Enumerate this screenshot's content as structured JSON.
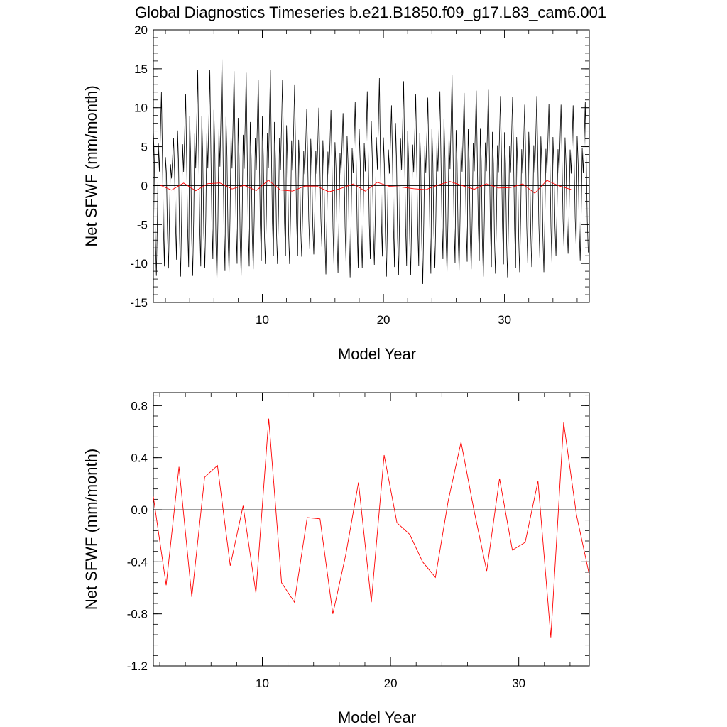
{
  "title": "Global Diagnostics Timeseries b.e21.B1850.f09_g17.L83_cam6.001",
  "colors": {
    "monthly": "#000000",
    "annual": "#ff0000",
    "zero_line": "#000000"
  },
  "chart_data": [
    {
      "type": "line",
      "xlabel": "Model Year",
      "ylabel": "Net SFWF (mm/month)",
      "xlim": [
        1,
        37
      ],
      "ylim": [
        -15,
        20
      ],
      "xticks": [
        10,
        20,
        30
      ],
      "xtick_labels": [
        "10",
        "20",
        "30"
      ],
      "yticks": [
        -15,
        -10,
        -5,
        0,
        5,
        10,
        15,
        20
      ],
      "ytick_labels": [
        "-15",
        "-10",
        "-5",
        "0",
        "5",
        "10",
        "15",
        "20"
      ],
      "reference_line": 0,
      "grid": false,
      "series": [
        {
          "kind": "monthly",
          "annual_peaks": [
            12,
            6.1,
            11.8,
            14.8,
            14.8,
            16.2,
            14.7,
            14.5,
            13.6,
            14.9,
            13.6,
            12.9,
            9.8,
            10.0,
            9.7,
            9.3,
            10.7,
            12.1,
            13.8,
            10.3,
            13.4,
            11.7,
            11.3,
            12.1,
            14.2,
            11.9,
            12.2,
            12.3,
            11.5,
            11.4,
            10.4,
            11.5,
            10.5,
            10.4,
            10.3,
            10.7
          ],
          "annual_troughs": [
            -12.2,
            -11.2,
            -12.3,
            -12.2,
            -11.1,
            -12.9,
            -11.8,
            -12.2,
            -11.3,
            -10.6,
            -10.6,
            -10.6,
            -9.6,
            -9.3,
            -12.0,
            -11.8,
            -12.4,
            -11.1,
            -10.7,
            -12.3,
            -12.1,
            -12.1,
            -13.3,
            -11.1,
            -11.7,
            -11.5,
            -11.3,
            -12.3,
            -11.9,
            -12.4,
            -11.7,
            -11.0,
            -11.7,
            -9.5,
            -9.2,
            -10.1
          ]
        },
        {
          "kind": "annual",
          "x": [
            1.5,
            2.5,
            3.5,
            4.5,
            5.5,
            6.5,
            7.5,
            8.5,
            9.5,
            10.5,
            11.5,
            12.5,
            13.5,
            14.5,
            15.5,
            16.5,
            17.5,
            18.5,
            19.5,
            20.5,
            21.5,
            22.5,
            23.5,
            24.5,
            25.5,
            26.5,
            27.5,
            28.5,
            29.5,
            30.5,
            31.5,
            32.5,
            33.5,
            34.5,
            35.5
          ],
          "values": [
            0.1,
            -0.58,
            0.33,
            -0.67,
            0.25,
            0.34,
            -0.43,
            0.03,
            -0.64,
            0.7,
            -0.56,
            -0.71,
            -0.06,
            -0.07,
            -0.8,
            -0.35,
            0.21,
            -0.71,
            0.42,
            -0.1,
            -0.19,
            -0.4,
            -0.52,
            0.07,
            0.52,
            0.0,
            -0.47,
            0.24,
            -0.31,
            -0.25,
            0.22,
            -0.98,
            0.67,
            -0.04,
            -0.5
          ]
        }
      ]
    },
    {
      "type": "line",
      "xlabel": "Model Year",
      "ylabel": "Net SFWF (mm/month)",
      "xlim": [
        1.5,
        35.5
      ],
      "ylim": [
        -1.2,
        0.9
      ],
      "xticks": [
        10,
        20,
        30
      ],
      "xtick_labels": [
        "10",
        "20",
        "30"
      ],
      "yticks": [
        -1.2,
        -0.8,
        -0.4,
        0.0,
        0.4,
        0.8
      ],
      "ytick_labels": [
        "-1.2",
        "-0.8",
        "-0.4",
        "0.0",
        "0.4",
        "0.8"
      ],
      "reference_line": 0,
      "grid": false,
      "series": [
        {
          "kind": "annual",
          "x": [
            1.5,
            2.5,
            3.5,
            4.5,
            5.5,
            6.5,
            7.5,
            8.5,
            9.5,
            10.5,
            11.5,
            12.5,
            13.5,
            14.5,
            15.5,
            16.5,
            17.5,
            18.5,
            19.5,
            20.5,
            21.5,
            22.5,
            23.5,
            24.5,
            25.5,
            26.5,
            27.5,
            28.5,
            29.5,
            30.5,
            31.5,
            32.5,
            33.5,
            34.5,
            35.5
          ],
          "values": [
            0.1,
            -0.58,
            0.33,
            -0.67,
            0.25,
            0.34,
            -0.43,
            0.03,
            -0.64,
            0.7,
            -0.56,
            -0.71,
            -0.06,
            -0.07,
            -0.8,
            -0.35,
            0.21,
            -0.71,
            0.42,
            -0.1,
            -0.19,
            -0.4,
            -0.52,
            0.07,
            0.52,
            0.0,
            -0.47,
            0.24,
            -0.31,
            -0.25,
            0.22,
            -0.98,
            0.67,
            -0.04,
            -0.5
          ]
        }
      ]
    }
  ]
}
